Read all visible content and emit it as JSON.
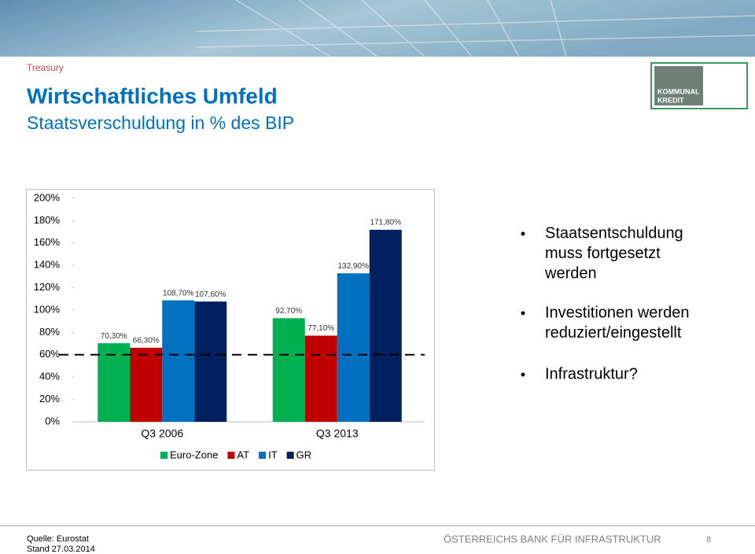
{
  "header": {
    "section": "Treasury",
    "title": "Wirtschaftliches Umfeld",
    "subtitle": "Staatsverschuldung in % des BIP",
    "logo": [
      "KOMMUNAL",
      "KREDIT"
    ]
  },
  "chart_data": {
    "type": "bar",
    "categories": [
      "Q3 2006",
      "Q3 2013"
    ],
    "series": [
      {
        "name": "Euro-Zone",
        "color": "#00b050",
        "values": [
          70.3,
          92.7
        ],
        "value_labels": [
          "70,30%",
          "92,70%"
        ]
      },
      {
        "name": "AT",
        "color": "#c00000",
        "values": [
          66.3,
          77.1
        ],
        "value_labels": [
          "66,30%",
          "77,10%"
        ]
      },
      {
        "name": "IT",
        "color": "#0070c0",
        "values": [
          108.7,
          132.9
        ],
        "value_labels": [
          "108,70%",
          "132,90%"
        ]
      },
      {
        "name": "GR",
        "color": "#002060",
        "values": [
          107.6,
          171.8
        ],
        "value_labels": [
          "107,60%",
          "171,80%"
        ]
      }
    ],
    "ylim": [
      0,
      200
    ],
    "yticks": [
      {
        "value": 0,
        "label": "0%"
      },
      {
        "value": 20,
        "label": "20%"
      },
      {
        "value": 40,
        "label": "40%"
      },
      {
        "value": 60,
        "label": "60%"
      },
      {
        "value": 80,
        "label": "80%"
      },
      {
        "value": 100,
        "label": "100%"
      },
      {
        "value": 120,
        "label": "120%"
      },
      {
        "value": 140,
        "label": "140%"
      },
      {
        "value": 160,
        "label": "160%"
      },
      {
        "value": 180,
        "label": "180%"
      },
      {
        "value": 200,
        "label": "200%"
      }
    ],
    "reference_line": 60,
    "legend": "bottom"
  },
  "bullets": [
    [
      "Staatsentschuldung",
      "muss fortgesetzt",
      "werden"
    ],
    [
      "Investitionen werden",
      "reduziert/eingestellt"
    ],
    [
      "Infrastruktur?"
    ]
  ],
  "footer": {
    "source": "Quelle: Eurostat",
    "date": "Stand 27.03.2014",
    "slogan": "ÖSTERREICHS BANK FÜR INFRASTRUKTUR",
    "page": "8"
  }
}
